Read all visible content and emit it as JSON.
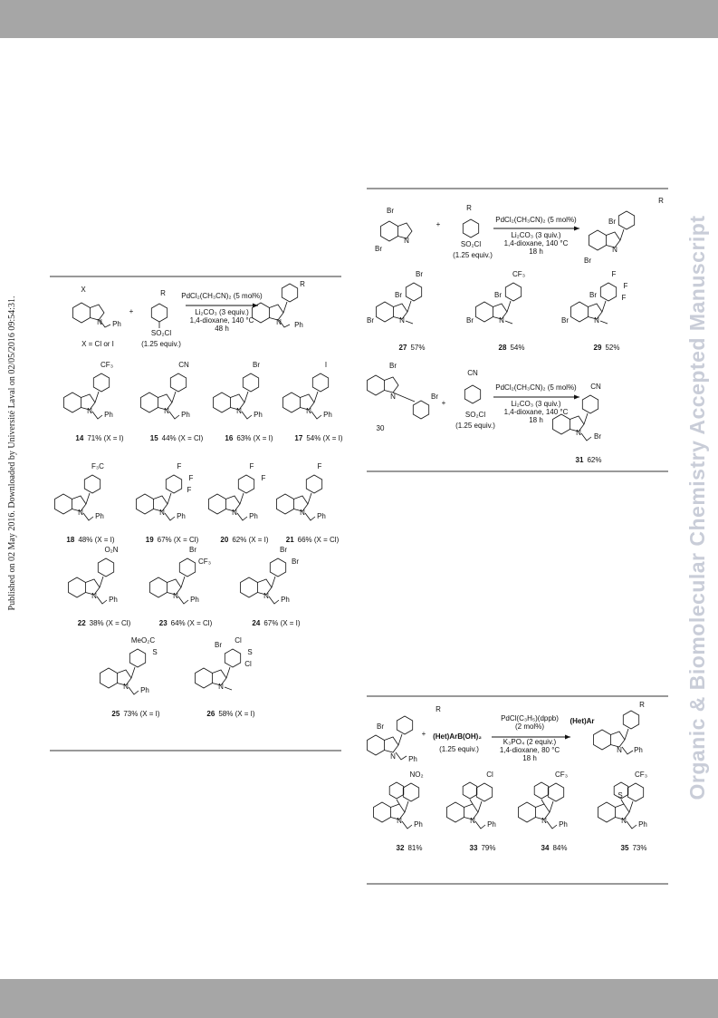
{
  "watermark": "Organic & Biomolecular Chemistry Accepted Manuscript",
  "published": "Published on 02 May 2016. Downloaded by Université Laval on 02/05/2016 09:54:31.",
  "colors": {
    "accent": "#e0218a",
    "aryl": "#2c9fe0",
    "het": "#a0522d"
  },
  "scheme1": {
    "reaction": {
      "texts": [
        "X",
        "N",
        "Ph",
        "X = Cl or I",
        "+",
        "R",
        "SO₂Cl",
        "(1.25 equiv.)",
        "R",
        "N",
        "Ph"
      ],
      "conditions": [
        "PdCl₂(CH₃CN)₂ (5 mol%)",
        "Li₂CO₃ (3 equiv.)",
        "1,4-dioxane, 140 °C",
        "48 h"
      ]
    },
    "compounds": [
      {
        "id": "14",
        "yield": "71% (X = I)",
        "aryl": [
          "CF₃"
        ],
        "core": [],
        "n": "N",
        "bn": "Ph"
      },
      {
        "id": "15",
        "yield": "44% (X = Cl)",
        "aryl": [
          "CN"
        ],
        "core": [],
        "n": "N",
        "bn": "Ph"
      },
      {
        "id": "16",
        "yield": "63% (X = I)",
        "aryl": [
          "Br"
        ],
        "core": [],
        "n": "N",
        "bn": "Ph"
      },
      {
        "id": "17",
        "yield": "54% (X = I)",
        "aryl": [
          "I"
        ],
        "core": [],
        "n": "N",
        "bn": "Ph"
      },
      {
        "id": "18",
        "yield": "48% (X = I)",
        "aryl": [
          "F₃C"
        ],
        "core": [],
        "n": "N",
        "bn": "Ph"
      },
      {
        "id": "19",
        "yield": "67% (X = Cl)",
        "aryl": [
          "F",
          "F",
          "F"
        ],
        "core": [],
        "n": "N",
        "bn": "Ph"
      },
      {
        "id": "20",
        "yield": "62% (X = I)",
        "aryl": [
          "F",
          "F"
        ],
        "core": [],
        "n": "N",
        "bn": "Ph"
      },
      {
        "id": "21",
        "yield": "66% (X = Cl)",
        "aryl": [
          "F"
        ],
        "core": [],
        "n": "N",
        "bn": "Ph"
      },
      {
        "id": "22",
        "yield": "38% (X = Cl)",
        "aryl": [
          "O₂N"
        ],
        "core": [],
        "n": "N",
        "bn": "Ph"
      },
      {
        "id": "23",
        "yield": "64% (X = Cl)",
        "aryl": [
          "Br",
          "CF₃"
        ],
        "core": [],
        "n": "N",
        "bn": "Ph"
      },
      {
        "id": "24",
        "yield": "67% (X = I)",
        "aryl": [
          "Br",
          "Br"
        ],
        "core": [],
        "n": "N",
        "bn": "Ph"
      },
      {
        "id": "25",
        "yield": "73% (X = I)",
        "aryl": [
          "MeO₂C",
          "S"
        ],
        "core": [],
        "n": "N",
        "bn": "Ph"
      },
      {
        "id": "26",
        "yield": "58% (X = I)",
        "aryl": [
          "Cl",
          "S",
          "Cl",
          "Br"
        ],
        "core": [],
        "n": "N"
      }
    ]
  },
  "scheme2": {
    "reaction": {
      "texts": [
        "Br",
        "N",
        "Br",
        "+",
        "R",
        "SO₂Cl",
        "(1.25 equiv.)",
        "Br",
        "R",
        "N",
        "Br"
      ],
      "conditions": [
        "PdCl₂(CH₃CN)₂ (5 mol%)",
        "Li₂CO₃ (3 quiv.)",
        "1,4-dioxane, 140 °C",
        "18 h"
      ]
    },
    "compounds": [
      {
        "id": "27",
        "yield": "57%",
        "aryl": [
          "Br"
        ],
        "core": [
          "Br",
          "Br"
        ],
        "n": "N"
      },
      {
        "id": "28",
        "yield": "54%",
        "aryl": [
          "CF₃"
        ],
        "core": [
          "Br",
          "Br"
        ],
        "n": "N"
      },
      {
        "id": "29",
        "yield": "52%",
        "aryl": [
          "F",
          "F",
          "F"
        ],
        "core": [
          "Br",
          "Br"
        ],
        "n": "N"
      }
    ],
    "reaction2": {
      "texts": [
        "Br",
        "N",
        "Br",
        "30",
        "+",
        "CN",
        "SO₂Cl",
        "(1.25 equiv.)"
      ],
      "conditions": [
        "PdCl₂(CH₃CN)₂ (5 mol%)",
        "Li₂CO₃ (3 quiv.)",
        "1,4-dioxane, 140 °C",
        "18 h"
      ]
    },
    "compounds2": [
      {
        "id": "31",
        "yield": "62%",
        "aryl": [
          "CN"
        ],
        "core": [],
        "n": "N",
        "bn": "Br"
      }
    ]
  },
  "scheme3": {
    "reaction": {
      "texts": [
        "Br",
        "R",
        "N",
        "Ph",
        "+",
        "(Het)ArB(OH)₂",
        "(1.25 equiv.)",
        "(Het)Ar",
        "R",
        "N",
        "Ph"
      ],
      "conditions": [
        "PdCl(C₃H₅)(dppb)",
        "(2 mol%)",
        "K₃PO₄ (2 equiv.)",
        "1,4-dioxane, 80 °C",
        "18 h"
      ]
    },
    "compounds": [
      {
        "id": "32",
        "yield": "81%",
        "aryl": [
          "NO₂"
        ],
        "core": [],
        "n": "N",
        "bn": "Ph"
      },
      {
        "id": "33",
        "yield": "79%",
        "aryl": [
          "Cl"
        ],
        "core": [],
        "n": "N",
        "bn": "Ph"
      },
      {
        "id": "34",
        "yield": "84%",
        "aryl": [
          "CF₃"
        ],
        "core": [],
        "n": "N",
        "bn": "Ph"
      },
      {
        "id": "35",
        "yield": "73%",
        "aryl": [
          "CF₃"
        ],
        "core": [
          "S"
        ],
        "n": "N",
        "bn": "Ph"
      }
    ]
  }
}
